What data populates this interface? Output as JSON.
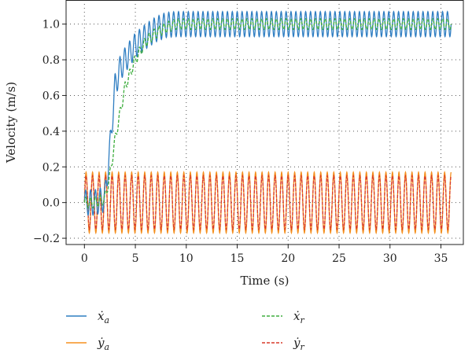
{
  "chart_data": {
    "type": "line",
    "xlabel": "Time (s)",
    "ylabel": "Velocity (m/s)",
    "xlim": [
      -1.8,
      37.2
    ],
    "ylim": [
      -0.235,
      1.135
    ],
    "xticks": [
      0,
      5,
      10,
      15,
      20,
      25,
      30,
      35
    ],
    "yticks": [
      -0.2,
      0.0,
      0.2,
      0.4,
      0.6,
      0.8,
      1.0
    ],
    "xtick_labels": [
      "0",
      "5",
      "10",
      "15",
      "20",
      "25",
      "30",
      "35"
    ],
    "ytick_labels": [
      "−0.2",
      "0.0",
      "0.2",
      "0.4",
      "0.6",
      "0.8",
      "1.0"
    ],
    "grid": true,
    "grid_style": "dotted",
    "legend_position": "below",
    "colors": {
      "blue": "#2f7ec2",
      "orange": "#f5901f",
      "green": "#3fae3f",
      "red": "#d83a2a"
    },
    "series": [
      {
        "name": "ẋa",
        "label_base": "ẋ",
        "label_sub": "a",
        "color": "#2f7ec2",
        "style": "solid",
        "envelope": {
          "time": [
            0,
            1,
            2,
            2.5,
            3,
            3.5,
            4,
            5,
            6,
            7,
            8,
            9,
            10,
            12,
            15,
            20,
            25,
            30,
            36
          ],
          "mean": [
            0.0,
            0.0,
            0.02,
            0.3,
            0.65,
            0.75,
            0.8,
            0.88,
            0.93,
            0.97,
            0.995,
            1.0,
            1.0,
            1.0,
            1.0,
            1.0,
            1.0,
            1.0,
            1.0
          ],
          "amplitude": 0.07,
          "period_s": 0.48
        }
      },
      {
        "name": "ẏa",
        "label_base": "ẏ",
        "label_sub": "a",
        "color": "#f5901f",
        "style": "solid",
        "envelope": {
          "time": [
            0,
            36
          ],
          "mean": [
            0.0,
            0.0
          ],
          "amplitude": 0.17,
          "period_s": 0.64
        }
      },
      {
        "name": "ẋr",
        "label_base": "ẋ",
        "label_sub": "r",
        "color": "#3fae3f",
        "style": "dashed",
        "envelope": {
          "time": [
            0,
            1,
            2,
            2.5,
            3,
            3.5,
            4,
            5,
            6,
            7,
            8,
            9,
            10,
            12,
            15,
            20,
            25,
            30,
            36
          ],
          "mean": [
            0.0,
            0.0,
            0.02,
            0.15,
            0.35,
            0.5,
            0.65,
            0.8,
            0.9,
            0.95,
            0.98,
            1.0,
            1.0,
            1.0,
            1.0,
            1.0,
            1.0,
            1.0,
            1.0
          ],
          "amplitude": 0.03,
          "period_s": 0.48
        }
      },
      {
        "name": "ẏr",
        "label_base": "ẏ",
        "label_sub": "r",
        "color": "#d83a2a",
        "style": "dashed",
        "envelope": {
          "time": [
            0,
            36
          ],
          "mean": [
            0.0,
            0.0
          ],
          "amplitude": 0.15,
          "period_s": 0.64
        }
      }
    ]
  }
}
